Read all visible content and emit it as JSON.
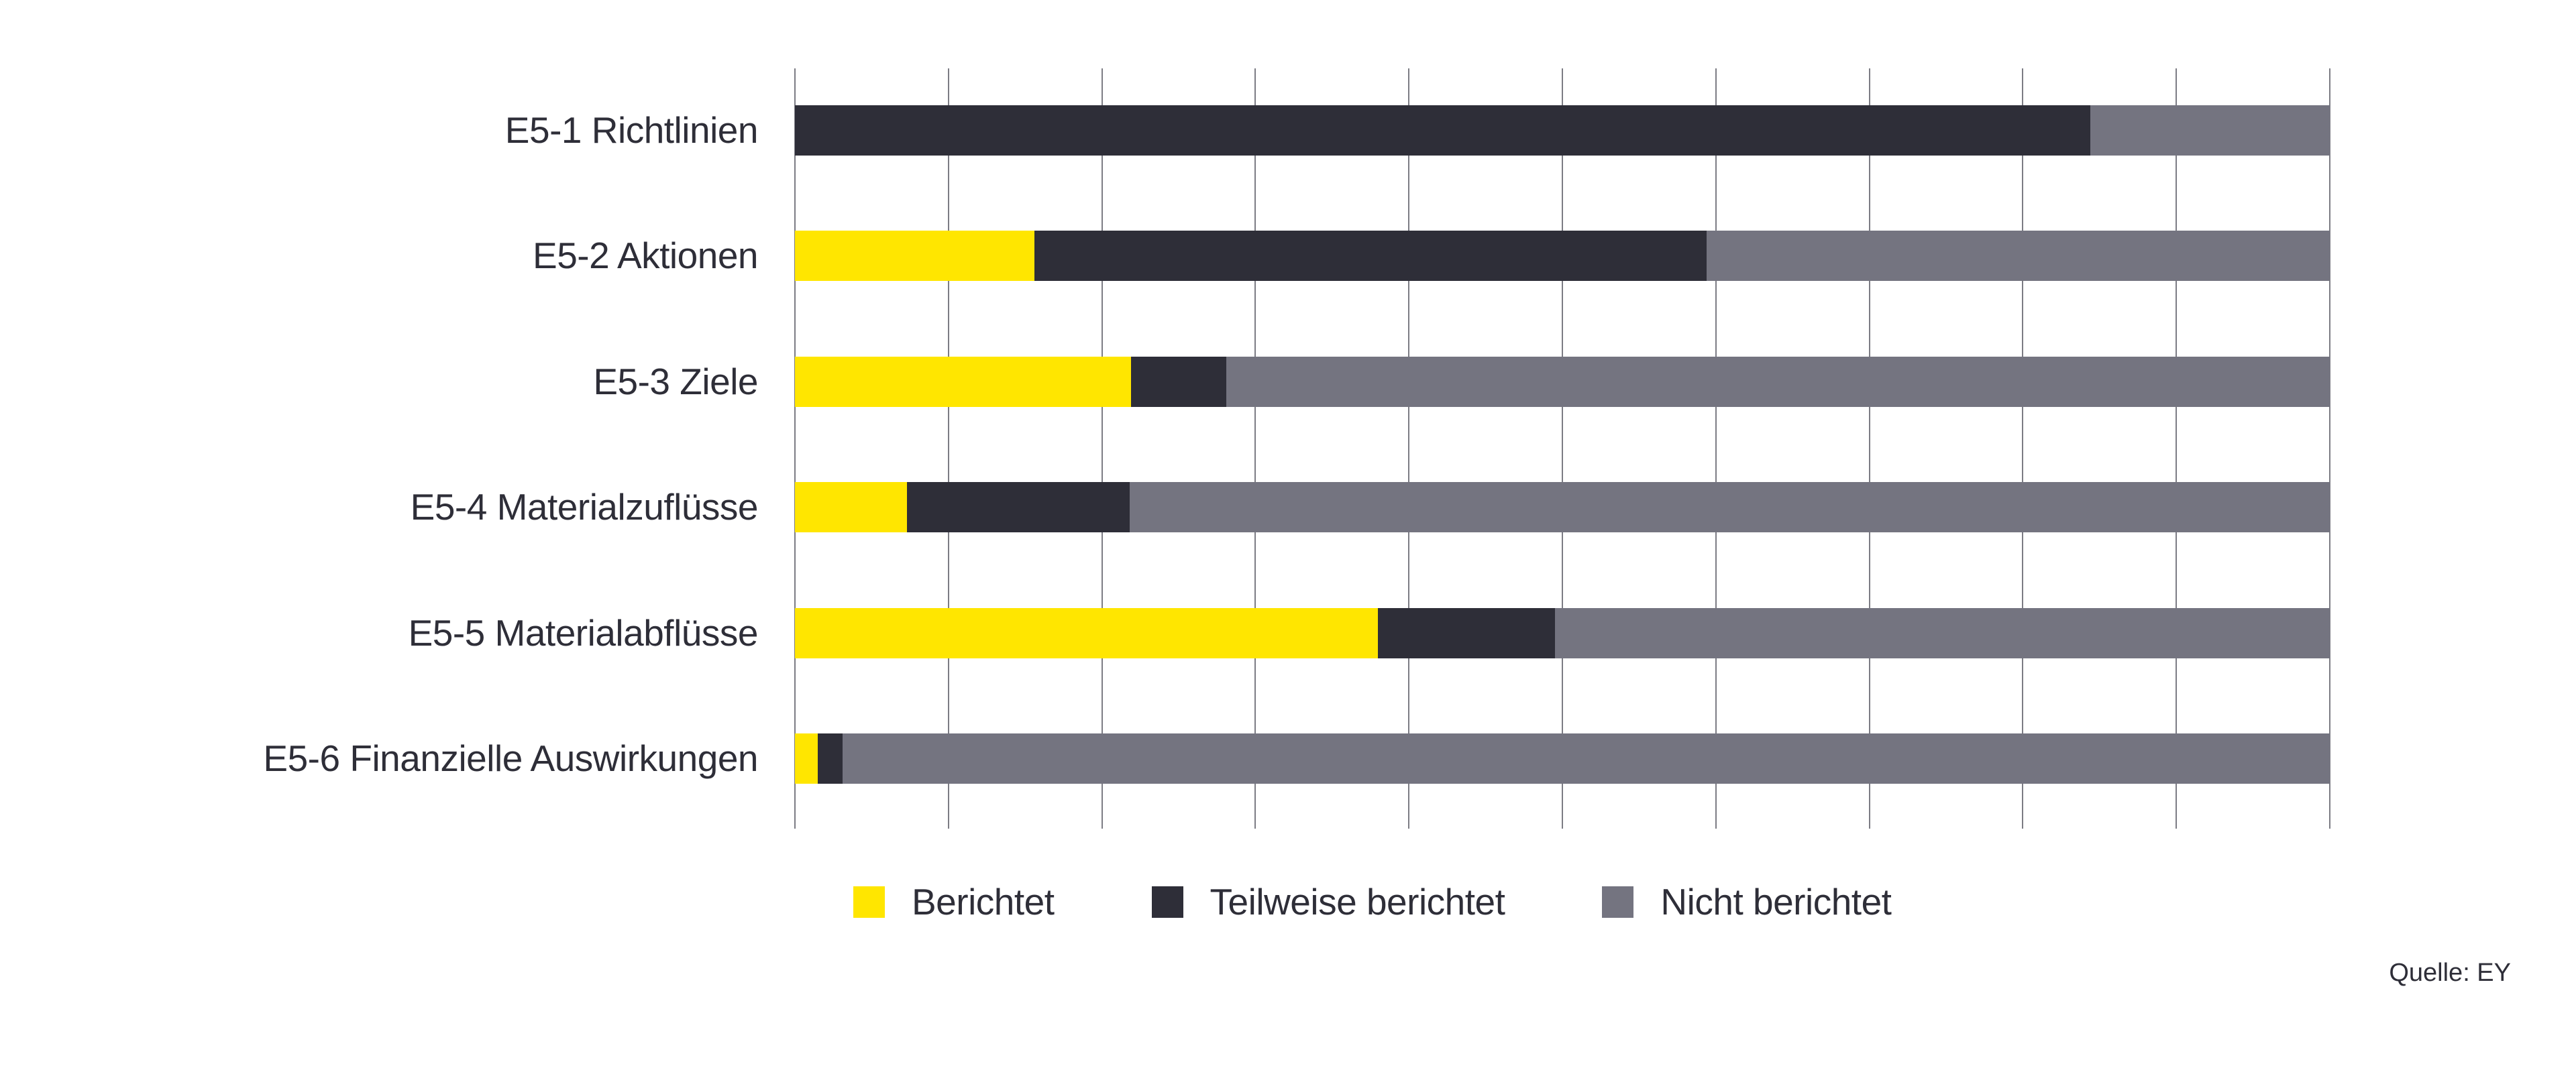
{
  "page": {
    "background_color": "#ffffff",
    "text_color": "#2e2e38",
    "gridline_color": "#7c7c84"
  },
  "source_note": "Quelle: EY",
  "chart_data": {
    "type": "bar",
    "orientation": "horizontal",
    "stacked": true,
    "title": "",
    "xlabel": "",
    "ylabel": "",
    "unit": "percent",
    "xlim": [
      0,
      100
    ],
    "grid": true,
    "gridline_interval": 10,
    "legend_position": "bottom",
    "categories": [
      "E5-1 Richtlinien",
      "E5-2 Aktionen",
      "E5-3 Ziele",
      "E5-4 Materialzuflüsse",
      "E5-5 Materialabflüsse",
      "E5-6 Finanzielle Auswirkungen"
    ],
    "series": [
      {
        "name": "Berichtet",
        "color": "#FFE600",
        "values": [
          0,
          15.6,
          21.9,
          7.3,
          38.0,
          1.5
        ]
      },
      {
        "name": "Teilweise berichtet",
        "color": "#2E2E38",
        "values": [
          84.4,
          43.8,
          6.2,
          14.5,
          11.5,
          1.6
        ]
      },
      {
        "name": "Nicht berichtet",
        "color": "#747480",
        "values": [
          15.6,
          40.6,
          71.9,
          78.2,
          50.5,
          96.9
        ]
      }
    ]
  }
}
